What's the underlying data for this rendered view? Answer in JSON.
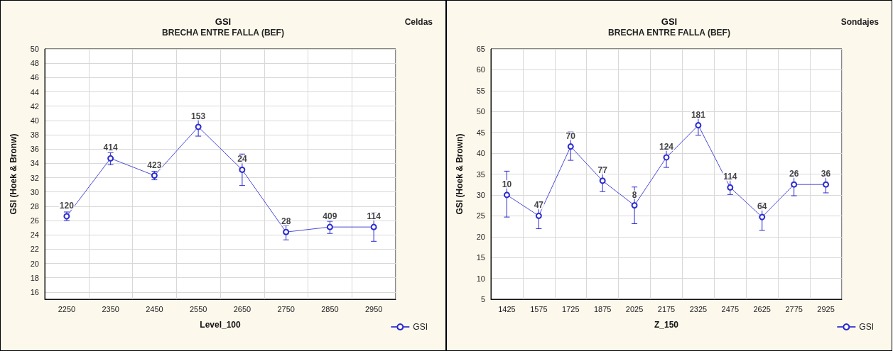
{
  "chart_data": [
    {
      "type": "line",
      "title": "GSI",
      "subtitle": "BRECHA ENTRE FALLA (BEF)",
      "xlabel": "Level_100",
      "ylabel": "GSI (Hoek & Bronw)",
      "annotations": [
        "Celdas",
        {
          "text": "120",
          "x": "2250",
          "y": 26.6
        },
        {
          "text": "414",
          "x": "2350",
          "y": 34.7
        },
        {
          "text": "423",
          "x": "2450",
          "y": 32.3
        },
        {
          "text": "153",
          "x": "2550",
          "y": 39.1
        },
        {
          "text": "24",
          "x": "2650",
          "y": 33.1
        },
        {
          "text": "28",
          "x": "2750",
          "y": 24.4
        },
        {
          "text": "409",
          "x": "2850",
          "y": 25.1
        },
        {
          "text": "114",
          "x": "2950",
          "y": 25.1
        }
      ],
      "categories": [
        "2250",
        "2350",
        "2450",
        "2550",
        "2650",
        "2750",
        "2850",
        "2950"
      ],
      "series": [
        {
          "name": "GSI",
          "color": "#2a2ad0",
          "values": [
            26.6,
            34.7,
            32.3,
            39.1,
            33.1,
            24.4,
            25.1,
            25.1
          ],
          "errors": [
            [
              26.0,
              27.2
            ],
            [
              33.8,
              35.5
            ],
            [
              31.7,
              32.9
            ],
            [
              37.8,
              40.3
            ],
            [
              30.9,
              35.3
            ],
            [
              23.3,
              25.3
            ],
            [
              24.2,
              25.9
            ],
            [
              23.1,
              27.1
            ]
          ]
        }
      ],
      "ylim": [
        15,
        50
      ],
      "yticks": [
        16,
        18,
        20,
        22,
        24,
        26,
        28,
        30,
        32,
        34,
        36,
        38,
        40,
        42,
        44,
        46,
        48,
        50
      ],
      "grid": true,
      "legend": "bottom right",
      "marker": "circle"
    },
    {
      "type": "line",
      "title": "GSI",
      "subtitle": "BRECHA ENTRE FALLA (BEF)",
      "xlabel": "Z_150",
      "ylabel": "GSI (Hoek & Brown)",
      "annotations": [
        "Sondajes",
        {
          "text": "10",
          "x": "1425",
          "y": 30.0
        },
        {
          "text": "47",
          "x": "1575",
          "y": 25.0
        },
        {
          "text": "70",
          "x": "1725",
          "y": 41.6
        },
        {
          "text": "77",
          "x": "1875",
          "y": 33.4
        },
        {
          "text": "8",
          "x": "2025",
          "y": 27.5
        },
        {
          "text": "124",
          "x": "2175",
          "y": 39.0
        },
        {
          "text": "181",
          "x": "2325",
          "y": 46.7
        },
        {
          "text": "114",
          "x": "2475",
          "y": 31.8
        },
        {
          "text": "64",
          "x": "2625",
          "y": 24.7
        },
        {
          "text": "26",
          "x": "2775",
          "y": 32.5
        },
        {
          "text": "36",
          "x": "2925",
          "y": 32.5
        }
      ],
      "categories": [
        "1425",
        "1575",
        "1725",
        "1875",
        "2025",
        "2175",
        "2325",
        "2475",
        "2625",
        "2775",
        "2925"
      ],
      "series": [
        {
          "name": "GSI",
          "color": "#2a2ad0",
          "values": [
            30.0,
            25.0,
            41.6,
            33.4,
            27.5,
            39.0,
            46.7,
            31.8,
            24.7,
            32.5,
            32.5
          ],
          "errors": [
            [
              24.7,
              35.7
            ],
            [
              21.9,
              28.3
            ],
            [
              38.3,
              45.1
            ],
            [
              30.8,
              36.5
            ],
            [
              23.1,
              31.9
            ],
            [
              36.6,
              41.6
            ],
            [
              44.3,
              48.6
            ],
            [
              30.1,
              34.2
            ],
            [
              21.5,
              28.1
            ],
            [
              29.8,
              35.3
            ],
            [
              30.5,
              34.9
            ]
          ]
        }
      ],
      "ylim": [
        5,
        65
      ],
      "yticks": [
        5,
        10,
        15,
        20,
        25,
        30,
        35,
        40,
        45,
        50,
        55,
        60,
        65
      ],
      "grid": true,
      "legend": "bottom right",
      "marker": "circle"
    }
  ]
}
